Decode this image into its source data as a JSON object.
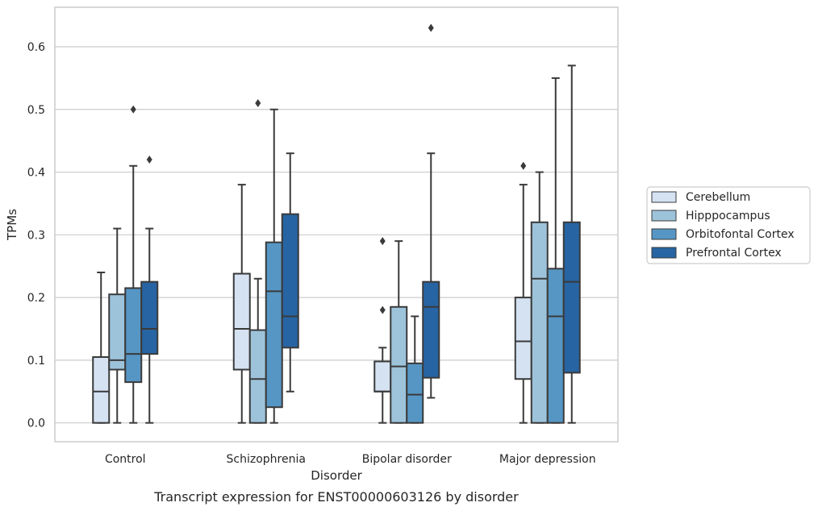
{
  "chart_data": {
    "type": "boxplot",
    "title": "",
    "xlabel": "Disorder",
    "ylabel": "TPMs",
    "caption": "Transcript expression for ENST00000603126 by disorder",
    "ylim": [
      -0.03,
      0.663
    ],
    "yticks": [
      0.0,
      0.1,
      0.2,
      0.3,
      0.4,
      0.5,
      0.6
    ],
    "ytick_labels": [
      "0.0",
      "0.1",
      "0.2",
      "0.3",
      "0.4",
      "0.5",
      "0.6"
    ],
    "grid": "horizontal",
    "legend_position": "right",
    "categories": [
      "Control",
      "Schizophrenia",
      "Bipolar disorder",
      "Major depression"
    ],
    "series": [
      {
        "name": "Cerebellum",
        "color": "#d4e2f2",
        "boxes": [
          {
            "whisker_low": 0.0,
            "q1": 0.0,
            "median": 0.05,
            "q3": 0.105,
            "whisker_high": 0.24,
            "outliers": []
          },
          {
            "whisker_low": 0.0,
            "q1": 0.085,
            "median": 0.15,
            "q3": 0.238,
            "whisker_high": 0.38,
            "outliers": []
          },
          {
            "whisker_low": 0.0,
            "q1": 0.05,
            "median": 0.05,
            "q3": 0.098,
            "whisker_high": 0.12,
            "outliers": [
              0.18,
              0.29
            ]
          },
          {
            "whisker_low": 0.0,
            "q1": 0.07,
            "median": 0.13,
            "q3": 0.2,
            "whisker_high": 0.38,
            "outliers": [
              0.41
            ]
          }
        ]
      },
      {
        "name": "Hipppocampus",
        "color": "#9dc3db",
        "boxes": [
          {
            "whisker_low": 0.0,
            "q1": 0.085,
            "median": 0.1,
            "q3": 0.205,
            "whisker_high": 0.31,
            "outliers": []
          },
          {
            "whisker_low": 0.0,
            "q1": 0.0,
            "median": 0.07,
            "q3": 0.148,
            "whisker_high": 0.23,
            "outliers": [
              0.51
            ]
          },
          {
            "whisker_low": 0.0,
            "q1": 0.0,
            "median": 0.09,
            "q3": 0.185,
            "whisker_high": 0.29,
            "outliers": []
          },
          {
            "whisker_low": 0.0,
            "q1": 0.0,
            "median": 0.23,
            "q3": 0.32,
            "whisker_high": 0.4,
            "outliers": []
          }
        ]
      },
      {
        "name": "Orbitofontal Cortex",
        "color": "#5696c4",
        "boxes": [
          {
            "whisker_low": 0.0,
            "q1": 0.065,
            "median": 0.11,
            "q3": 0.215,
            "whisker_high": 0.41,
            "outliers": [
              0.5
            ]
          },
          {
            "whisker_low": 0.0,
            "q1": 0.025,
            "median": 0.21,
            "q3": 0.288,
            "whisker_high": 0.5,
            "outliers": []
          },
          {
            "whisker_low": 0.0,
            "q1": 0.0,
            "median": 0.045,
            "q3": 0.095,
            "whisker_high": 0.17,
            "outliers": []
          },
          {
            "whisker_low": 0.0,
            "q1": 0.0,
            "median": 0.17,
            "q3": 0.246,
            "whisker_high": 0.55,
            "outliers": []
          }
        ]
      },
      {
        "name": "Prefrontal Cortex",
        "color": "#2764a3",
        "boxes": [
          {
            "whisker_low": 0.0,
            "q1": 0.11,
            "median": 0.15,
            "q3": 0.225,
            "whisker_high": 0.31,
            "outliers": [
              0.42
            ]
          },
          {
            "whisker_low": 0.05,
            "q1": 0.12,
            "median": 0.17,
            "q3": 0.333,
            "whisker_high": 0.43,
            "outliers": []
          },
          {
            "whisker_low": 0.04,
            "q1": 0.072,
            "median": 0.185,
            "q3": 0.225,
            "whisker_high": 0.43,
            "outliers": [
              0.63
            ]
          },
          {
            "whisker_low": 0.0,
            "q1": 0.08,
            "median": 0.225,
            "q3": 0.32,
            "whisker_high": 0.57,
            "outliers": []
          }
        ]
      }
    ]
  }
}
